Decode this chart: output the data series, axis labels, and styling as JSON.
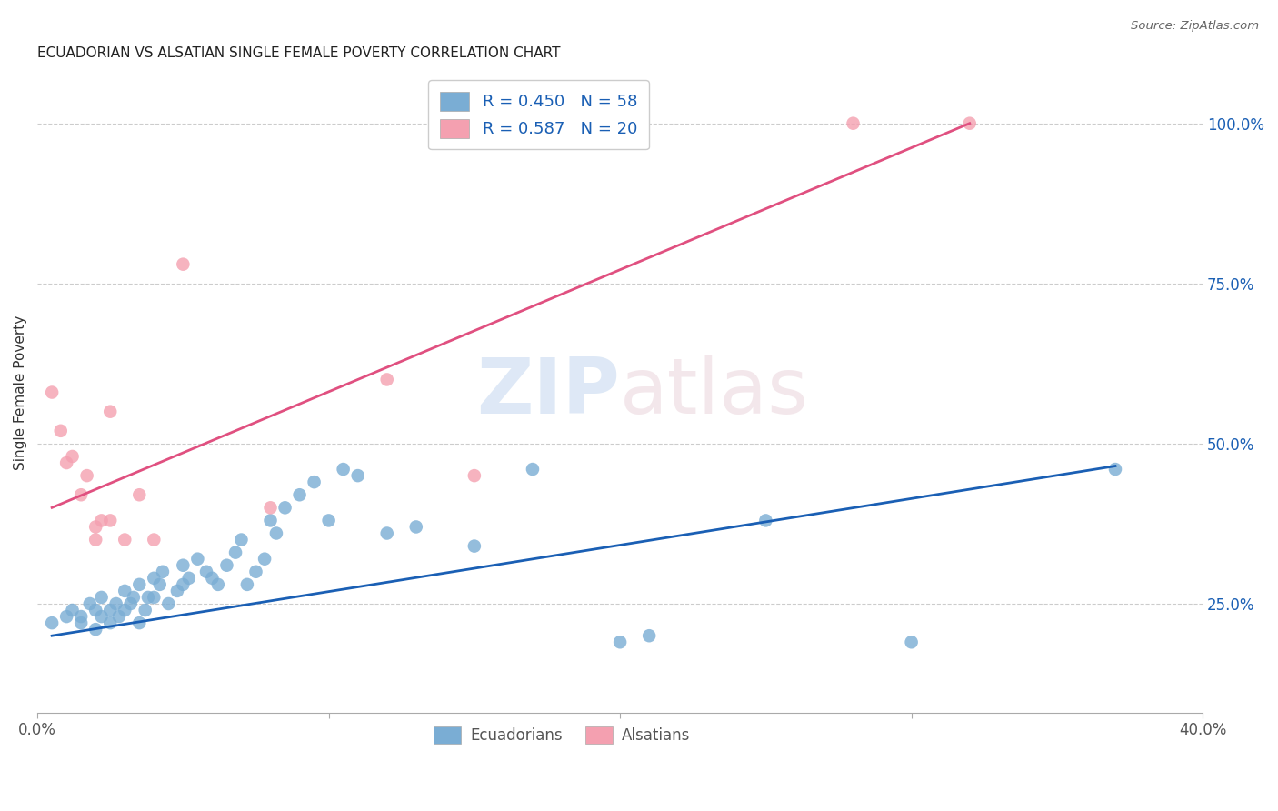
{
  "title": "ECUADORIAN VS ALSATIAN SINGLE FEMALE POVERTY CORRELATION CHART",
  "source": "Source: ZipAtlas.com",
  "ylabel": "Single Female Poverty",
  "ylabel_right_ticks": [
    "100.0%",
    "75.0%",
    "50.0%",
    "25.0%"
  ],
  "ylabel_right_vals": [
    1.0,
    0.75,
    0.5,
    0.25
  ],
  "xlim": [
    0.0,
    0.4
  ],
  "ylim": [
    0.08,
    1.08
  ],
  "blue_R": 0.45,
  "blue_N": 58,
  "pink_R": 0.587,
  "pink_N": 20,
  "blue_color": "#7aadd4",
  "pink_color": "#f4a0b0",
  "line_blue": "#1a5fb4",
  "line_pink": "#e05080",
  "background_color": "#ffffff",
  "grid_color": "#cccccc",
  "legend_color": "#1a5fb4",
  "ecuadorians_x": [
    0.005,
    0.01,
    0.012,
    0.015,
    0.015,
    0.018,
    0.02,
    0.02,
    0.022,
    0.022,
    0.025,
    0.025,
    0.027,
    0.028,
    0.03,
    0.03,
    0.032,
    0.033,
    0.035,
    0.035,
    0.037,
    0.038,
    0.04,
    0.04,
    0.042,
    0.043,
    0.045,
    0.048,
    0.05,
    0.05,
    0.052,
    0.055,
    0.058,
    0.06,
    0.062,
    0.065,
    0.068,
    0.07,
    0.072,
    0.075,
    0.078,
    0.08,
    0.082,
    0.085,
    0.09,
    0.095,
    0.1,
    0.105,
    0.11,
    0.12,
    0.13,
    0.15,
    0.17,
    0.2,
    0.21,
    0.25,
    0.3,
    0.37
  ],
  "ecuadorians_y": [
    0.22,
    0.23,
    0.24,
    0.23,
    0.22,
    0.25,
    0.21,
    0.24,
    0.26,
    0.23,
    0.22,
    0.24,
    0.25,
    0.23,
    0.27,
    0.24,
    0.25,
    0.26,
    0.22,
    0.28,
    0.24,
    0.26,
    0.29,
    0.26,
    0.28,
    0.3,
    0.25,
    0.27,
    0.31,
    0.28,
    0.29,
    0.32,
    0.3,
    0.29,
    0.28,
    0.31,
    0.33,
    0.35,
    0.28,
    0.3,
    0.32,
    0.38,
    0.36,
    0.4,
    0.42,
    0.44,
    0.38,
    0.46,
    0.45,
    0.36,
    0.37,
    0.34,
    0.46,
    0.19,
    0.2,
    0.38,
    0.19,
    0.46
  ],
  "alsatians_x": [
    0.005,
    0.008,
    0.01,
    0.012,
    0.015,
    0.017,
    0.02,
    0.022,
    0.025,
    0.03,
    0.035,
    0.04,
    0.05,
    0.08,
    0.12,
    0.15,
    0.02,
    0.025,
    0.28,
    0.32
  ],
  "alsatians_y": [
    0.58,
    0.52,
    0.47,
    0.48,
    0.42,
    0.45,
    0.37,
    0.38,
    0.38,
    0.35,
    0.42,
    0.35,
    0.78,
    0.4,
    0.6,
    0.45,
    0.35,
    0.55,
    1.0,
    1.0
  ],
  "blue_line_x": [
    0.005,
    0.37
  ],
  "blue_line_y": [
    0.2,
    0.465
  ],
  "pink_line_x": [
    0.005,
    0.32
  ],
  "pink_line_y": [
    0.4,
    1.0
  ]
}
